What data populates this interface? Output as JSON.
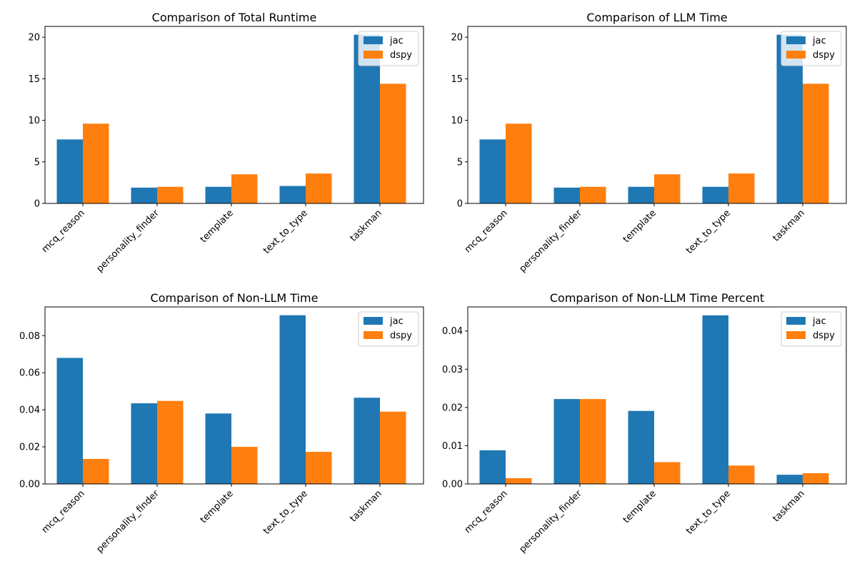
{
  "colors": {
    "jac": "#1f77b4",
    "dspy": "#ff7f0e",
    "axis": "#000000",
    "legend_border": "#cccccc"
  },
  "chart_data": [
    {
      "type": "bar",
      "title": "Comparison of Total Runtime",
      "categories": [
        "mcq_reason",
        "personality_finder",
        "template",
        "text_to_type",
        "taskman"
      ],
      "series": [
        {
          "name": "jac",
          "values": [
            7.7,
            1.9,
            2.0,
            2.1,
            20.3
          ]
        },
        {
          "name": "dspy",
          "values": [
            9.6,
            2.0,
            3.5,
            3.6,
            14.4
          ]
        }
      ],
      "ylim": [
        0,
        21.3
      ],
      "yticks": [
        "0",
        "5",
        "10",
        "15",
        "20"
      ],
      "ytick_values": [
        0,
        5,
        10,
        15,
        20
      ],
      "legend": "top-right",
      "grid": false
    },
    {
      "type": "bar",
      "title": "Comparison of LLM Time",
      "categories": [
        "mcq_reason",
        "personality_finder",
        "template",
        "text_to_type",
        "taskman"
      ],
      "series": [
        {
          "name": "jac",
          "values": [
            7.7,
            1.9,
            2.0,
            2.0,
            20.3
          ]
        },
        {
          "name": "dspy",
          "values": [
            9.6,
            2.0,
            3.5,
            3.6,
            14.4
          ]
        }
      ],
      "ylim": [
        0,
        21.3
      ],
      "yticks": [
        "0",
        "5",
        "10",
        "15",
        "20"
      ],
      "ytick_values": [
        0,
        5,
        10,
        15,
        20
      ],
      "legend": "top-right",
      "grid": false
    },
    {
      "type": "bar",
      "title": "Comparison of Non-LLM Time",
      "categories": [
        "mcq_reason",
        "personality_finder",
        "template",
        "text_to_type",
        "taskman"
      ],
      "series": [
        {
          "name": "jac",
          "values": [
            0.068,
            0.0435,
            0.038,
            0.091,
            0.0465
          ]
        },
        {
          "name": "dspy",
          "values": [
            0.0135,
            0.0448,
            0.02,
            0.0173,
            0.039
          ]
        }
      ],
      "ylim": [
        0,
        0.0955
      ],
      "yticks": [
        "0.00",
        "0.02",
        "0.04",
        "0.06",
        "0.08"
      ],
      "ytick_values": [
        0,
        0.02,
        0.04,
        0.06,
        0.08
      ],
      "legend": "top-right",
      "grid": false
    },
    {
      "type": "bar",
      "title": "Comparison of Non-LLM Time Percent",
      "categories": [
        "mcq_reason",
        "personality_finder",
        "template",
        "text_to_type",
        "taskman"
      ],
      "series": [
        {
          "name": "jac",
          "values": [
            0.0088,
            0.0222,
            0.0191,
            0.0441,
            0.0024
          ]
        },
        {
          "name": "dspy",
          "values": [
            0.0015,
            0.0222,
            0.0057,
            0.0048,
            0.0028
          ]
        }
      ],
      "ylim": [
        0,
        0.0463
      ],
      "yticks": [
        "0.00",
        "0.01",
        "0.02",
        "0.03",
        "0.04"
      ],
      "ytick_values": [
        0,
        0.01,
        0.02,
        0.03,
        0.04
      ],
      "legend": "top-right",
      "grid": false
    }
  ]
}
